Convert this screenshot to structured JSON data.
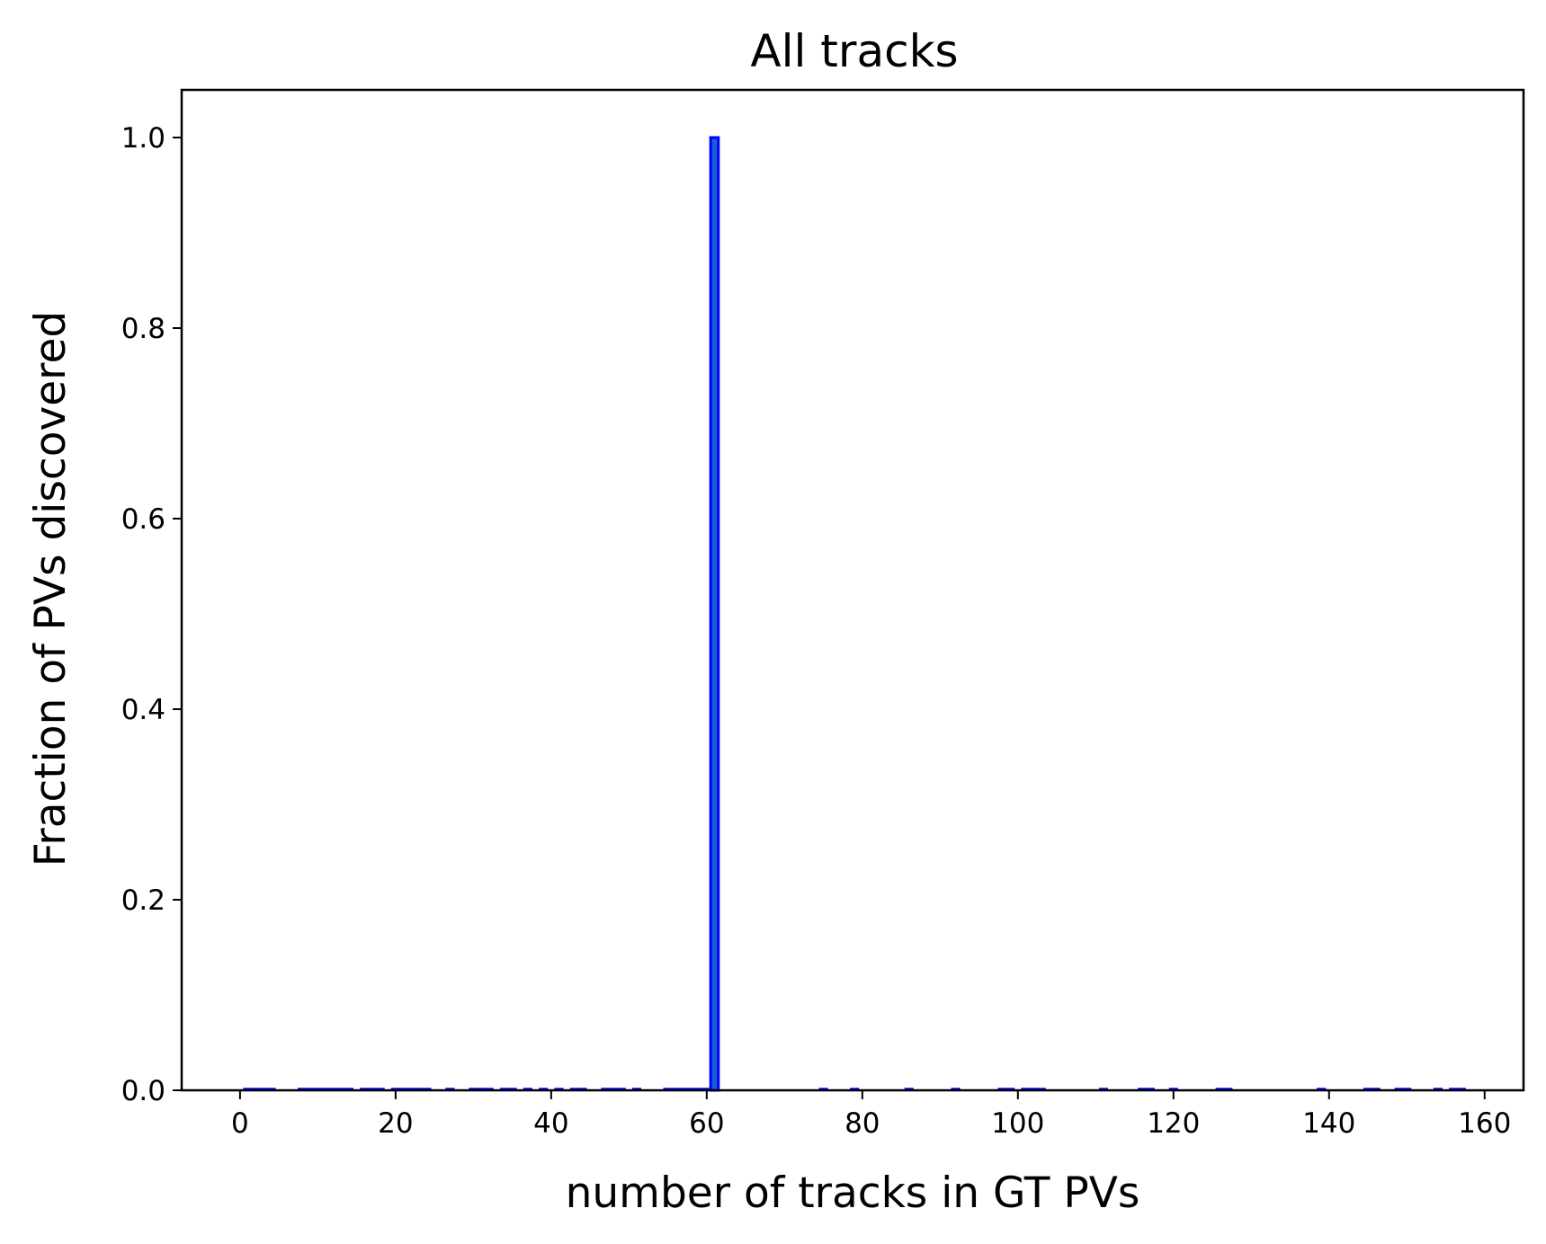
{
  "chart_data": {
    "type": "bar",
    "title": "All tracks",
    "xlabel": "number of tracks in GT PVs",
    "ylabel": "Fraction of PVs discovered",
    "xlim": [
      -7.5,
      165
    ],
    "ylim": [
      0,
      1.05
    ],
    "xticks": [
      0,
      20,
      40,
      60,
      80,
      100,
      120,
      140,
      160
    ],
    "yticks": [
      0.0,
      0.2,
      0.4,
      0.6,
      0.8,
      1.0
    ],
    "xtick_labels": [
      "0",
      "20",
      "40",
      "60",
      "80",
      "100",
      "120",
      "140",
      "160"
    ],
    "ytick_labels": [
      "0.0",
      "0.2",
      "0.4",
      "0.6",
      "0.8",
      "1.0"
    ],
    "bar_width": 1,
    "bar_color": "#0000ff",
    "bar_fill": "#1a5fd0",
    "series": [
      {
        "x": [
          1,
          2,
          3,
          4,
          8,
          9,
          10,
          11,
          12,
          13,
          14,
          16,
          17,
          18,
          20,
          21,
          22,
          23,
          24,
          27,
          30,
          31,
          32,
          34,
          35,
          37,
          39,
          41,
          43,
          44,
          47,
          48,
          49,
          51,
          55,
          56,
          57,
          58,
          59,
          60,
          61,
          75,
          79,
          86,
          92,
          98,
          99,
          101,
          102,
          103,
          111,
          116,
          117,
          120,
          126,
          127,
          139,
          145,
          146,
          149,
          150,
          154,
          156,
          157
        ],
        "values": [
          0,
          0,
          0,
          0,
          0,
          0,
          0,
          0,
          0,
          0,
          0,
          0,
          0,
          0,
          0,
          0,
          0,
          0,
          0,
          0,
          0,
          0,
          0,
          0,
          0,
          0,
          0,
          0,
          0,
          0,
          0,
          0,
          0,
          0,
          0,
          0,
          0,
          0,
          0,
          0,
          1.0,
          0,
          0,
          0,
          0,
          0,
          0,
          0,
          0,
          0,
          0,
          0,
          0,
          0,
          0,
          0,
          0,
          0,
          0,
          0,
          0,
          0,
          0,
          0
        ]
      }
    ],
    "grid": false,
    "legend": "none"
  }
}
